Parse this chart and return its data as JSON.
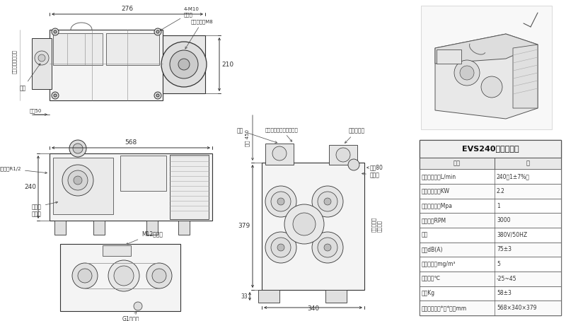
{
  "title": "EVS240技术参数表",
  "table_headers": [
    "项目",
    "值"
  ],
  "table_rows": [
    [
      "公称容积流量L/min",
      "240（1±7%）"
    ],
    [
      "电机额定功率KW",
      "2.2"
    ],
    [
      "额定工作压力Mpa",
      "1"
    ],
    [
      "额定转速RPM",
      "3000"
    ],
    [
      "电源",
      "380V/50HZ"
    ],
    [
      "噪音dB(A)",
      "75±3"
    ],
    [
      "排气含油量mg/m³",
      "5"
    ],
    [
      "环境温度℃",
      "-25~45"
    ],
    [
      "重量Kg",
      "58±3"
    ],
    [
      "外形尺寸（长*宽*高）mm",
      "568×340×379"
    ]
  ],
  "bg_color": "#ffffff",
  "table_border_color": "#555555",
  "line_color": "#333333",
  "draw_color": "#555555"
}
